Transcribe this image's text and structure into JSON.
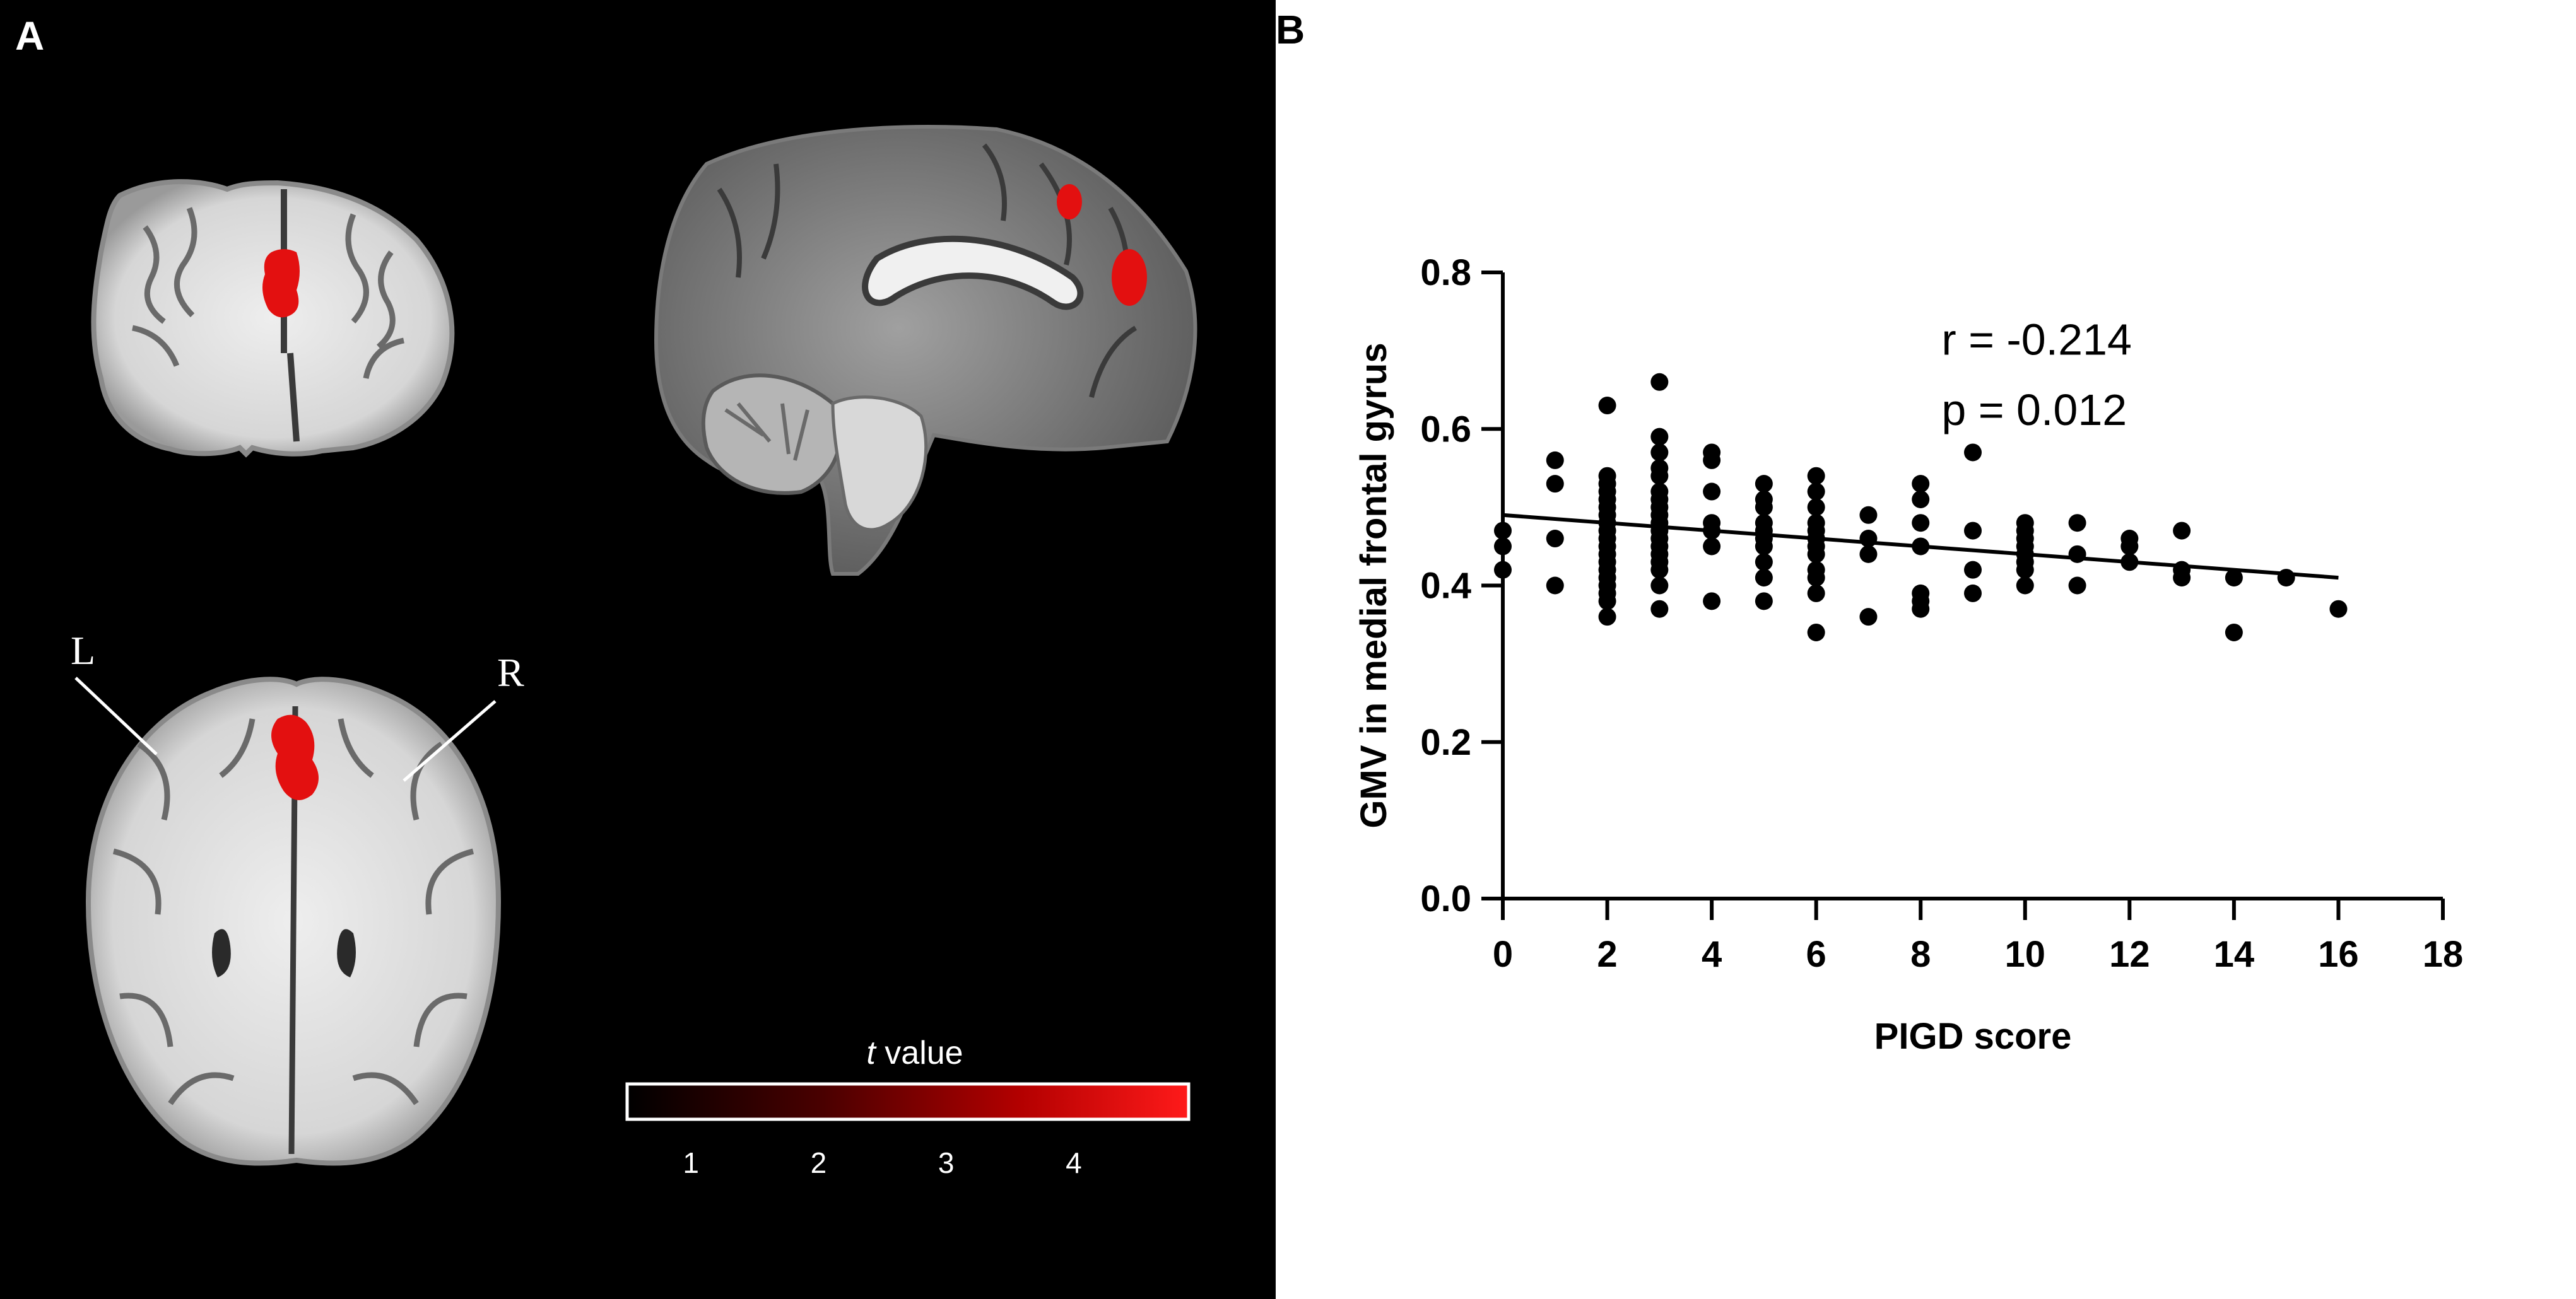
{
  "panel_a": {
    "letter": "A",
    "left_label": "L",
    "right_label": "R",
    "colorbar": {
      "title_italic": "t",
      "title_rest": " value",
      "ticks": [
        "1",
        "2",
        "3",
        "4"
      ],
      "ticks_values": [
        1,
        2,
        3,
        4
      ],
      "range": [
        0.5,
        4.9
      ],
      "colors": [
        "#000000",
        "#5a0000",
        "#c00000",
        "#ff1a1a"
      ]
    },
    "overlay_color": "#e31010"
  },
  "panel_b": {
    "letter": "B",
    "annotation_r": "r = -0.214",
    "annotation_p": "p = 0.012"
  },
  "chart_data": {
    "type": "scatter",
    "title": "",
    "xlabel": "PIGD score",
    "ylabel": "GMV in medial frontal gyrus",
    "xlim": [
      0,
      18
    ],
    "ylim": [
      0.0,
      0.8
    ],
    "xticks": [
      0,
      2,
      4,
      6,
      8,
      10,
      12,
      14,
      16,
      18
    ],
    "yticks": [
      0.0,
      0.2,
      0.4,
      0.6,
      0.8
    ],
    "xtick_labels": [
      "0",
      "2",
      "4",
      "6",
      "8",
      "10",
      "12",
      "14",
      "16",
      "18"
    ],
    "ytick_labels": [
      "0.0",
      "0.2",
      "0.4",
      "0.6",
      "0.8"
    ],
    "grid": false,
    "point_color": "#000000",
    "points": [
      [
        0,
        0.42
      ],
      [
        0,
        0.45
      ],
      [
        0,
        0.47
      ],
      [
        1,
        0.4
      ],
      [
        1,
        0.46
      ],
      [
        1,
        0.53
      ],
      [
        1,
        0.56
      ],
      [
        2,
        0.36
      ],
      [
        2,
        0.38
      ],
      [
        2,
        0.39
      ],
      [
        2,
        0.4
      ],
      [
        2,
        0.41
      ],
      [
        2,
        0.42
      ],
      [
        2,
        0.43
      ],
      [
        2,
        0.44
      ],
      [
        2,
        0.45
      ],
      [
        2,
        0.46
      ],
      [
        2,
        0.47
      ],
      [
        2,
        0.48
      ],
      [
        2,
        0.49
      ],
      [
        2,
        0.5
      ],
      [
        2,
        0.51
      ],
      [
        2,
        0.52
      ],
      [
        2,
        0.53
      ],
      [
        2,
        0.54
      ],
      [
        2,
        0.63
      ],
      [
        3,
        0.37
      ],
      [
        3,
        0.4
      ],
      [
        3,
        0.42
      ],
      [
        3,
        0.43
      ],
      [
        3,
        0.44
      ],
      [
        3,
        0.45
      ],
      [
        3,
        0.46
      ],
      [
        3,
        0.47
      ],
      [
        3,
        0.48
      ],
      [
        3,
        0.49
      ],
      [
        3,
        0.5
      ],
      [
        3,
        0.51
      ],
      [
        3,
        0.52
      ],
      [
        3,
        0.54
      ],
      [
        3,
        0.55
      ],
      [
        3,
        0.57
      ],
      [
        3,
        0.59
      ],
      [
        3,
        0.66
      ],
      [
        4,
        0.38
      ],
      [
        4,
        0.45
      ],
      [
        4,
        0.47
      ],
      [
        4,
        0.48
      ],
      [
        4,
        0.52
      ],
      [
        4,
        0.56
      ],
      [
        4,
        0.57
      ],
      [
        5,
        0.38
      ],
      [
        5,
        0.41
      ],
      [
        5,
        0.43
      ],
      [
        5,
        0.45
      ],
      [
        5,
        0.46
      ],
      [
        5,
        0.47
      ],
      [
        5,
        0.48
      ],
      [
        5,
        0.5
      ],
      [
        5,
        0.51
      ],
      [
        5,
        0.53
      ],
      [
        6,
        0.34
      ],
      [
        6,
        0.39
      ],
      [
        6,
        0.41
      ],
      [
        6,
        0.42
      ],
      [
        6,
        0.44
      ],
      [
        6,
        0.45
      ],
      [
        6,
        0.46
      ],
      [
        6,
        0.47
      ],
      [
        6,
        0.48
      ],
      [
        6,
        0.5
      ],
      [
        6,
        0.52
      ],
      [
        6,
        0.54
      ],
      [
        7,
        0.36
      ],
      [
        7,
        0.44
      ],
      [
        7,
        0.46
      ],
      [
        7,
        0.49
      ],
      [
        8,
        0.37
      ],
      [
        8,
        0.38
      ],
      [
        8,
        0.39
      ],
      [
        8,
        0.45
      ],
      [
        8,
        0.48
      ],
      [
        8,
        0.51
      ],
      [
        8,
        0.53
      ],
      [
        9,
        0.39
      ],
      [
        9,
        0.42
      ],
      [
        9,
        0.47
      ],
      [
        9,
        0.57
      ],
      [
        10,
        0.4
      ],
      [
        10,
        0.42
      ],
      [
        10,
        0.43
      ],
      [
        10,
        0.44
      ],
      [
        10,
        0.45
      ],
      [
        10,
        0.46
      ],
      [
        10,
        0.47
      ],
      [
        10,
        0.48
      ],
      [
        11,
        0.4
      ],
      [
        11,
        0.44
      ],
      [
        11,
        0.48
      ],
      [
        12,
        0.43
      ],
      [
        12,
        0.45
      ],
      [
        12,
        0.46
      ],
      [
        13,
        0.41
      ],
      [
        13,
        0.42
      ],
      [
        13,
        0.47
      ],
      [
        14,
        0.34
      ],
      [
        14,
        0.41
      ],
      [
        15,
        0.41
      ],
      [
        16,
        0.37
      ]
    ],
    "fit_line": {
      "x": [
        0,
        16
      ],
      "y": [
        0.49,
        0.41
      ]
    },
    "annotations": [
      "r = -0.214",
      "p = 0.012"
    ]
  }
}
